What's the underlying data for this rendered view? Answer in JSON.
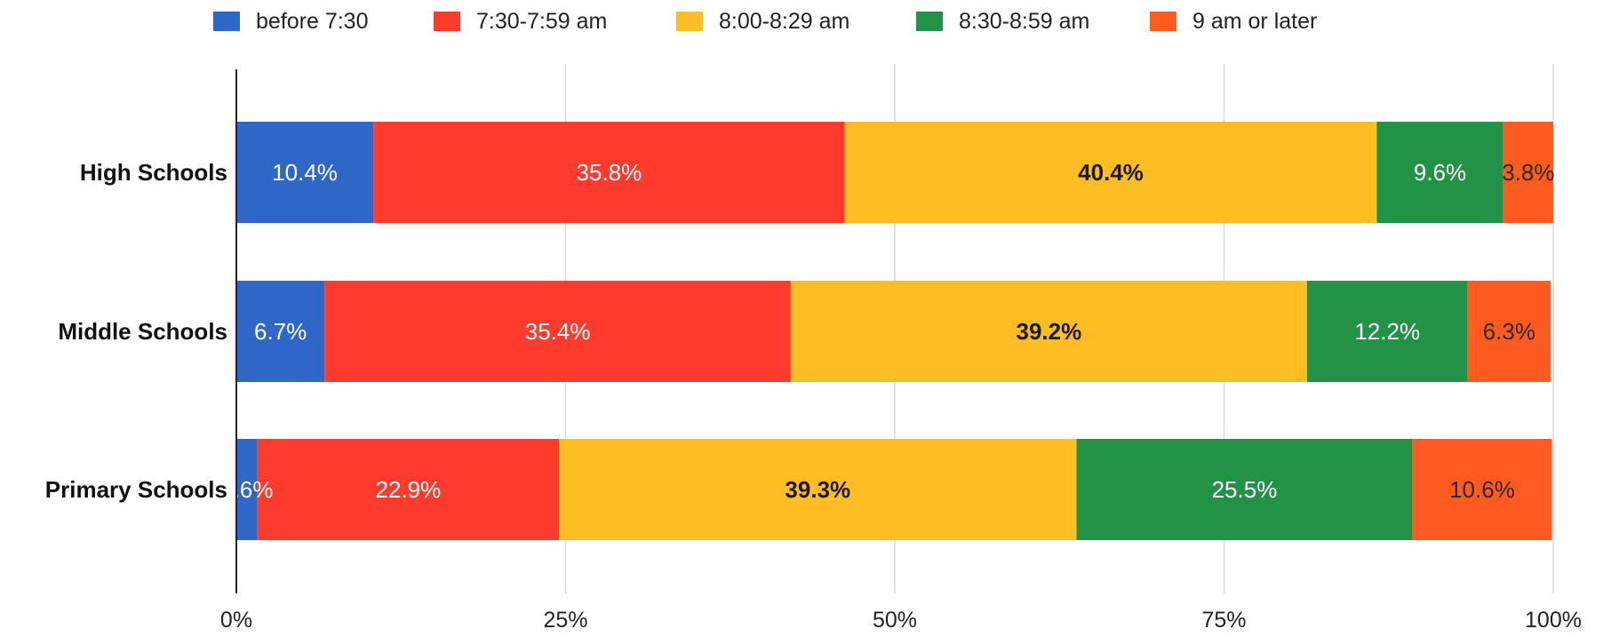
{
  "chart_data": {
    "type": "bar",
    "orientation": "horizontal",
    "stacked": true,
    "percent": true,
    "title": "",
    "xlabel": "",
    "ylabel": "",
    "xlim": [
      0,
      100
    ],
    "x_ticks": [
      "0%",
      "25%",
      "50%",
      "75%",
      "100%"
    ],
    "x_tick_values": [
      0,
      25,
      50,
      75,
      100
    ],
    "grid": true,
    "legend_position": "top",
    "categories": [
      "High Schools",
      "Middle Schools",
      "Primary Schools"
    ],
    "series": [
      {
        "name": "before 7:30",
        "color": "#2f67c8",
        "label_color": "#ffffff",
        "label_weight": "normal",
        "values": [
          10.4,
          6.7,
          1.6
        ],
        "labels": [
          "10.4%",
          "6.7%",
          "1.6%"
        ]
      },
      {
        "name": "7:30-7:59 am",
        "color": "#ff3b2d",
        "label_color": "#ffffff",
        "label_weight": "normal",
        "values": [
          35.8,
          35.4,
          22.9
        ],
        "labels": [
          "35.8%",
          "35.4%",
          "22.9%"
        ]
      },
      {
        "name": "8:00-8:29 am",
        "color": "#ffbd24",
        "label_color": "#1a1a1a",
        "label_weight": "bold",
        "values": [
          40.4,
          39.2,
          39.3
        ],
        "labels": [
          "40.4%",
          "39.2%",
          "39.3%"
        ]
      },
      {
        "name": "8:30-8:59 am",
        "color": "#219246",
        "label_color": "#ffffff",
        "label_weight": "normal",
        "values": [
          9.6,
          12.2,
          25.5
        ],
        "labels": [
          "9.6%",
          "12.2%",
          "25.5%"
        ]
      },
      {
        "name": "9 am or later",
        "color": "#ff5a1f",
        "label_color": "#2a2a2a",
        "label_weight": "normal",
        "values": [
          3.8,
          6.3,
          10.6
        ],
        "labels": [
          "3.8%",
          "6.3%",
          "10.6%"
        ]
      }
    ]
  }
}
